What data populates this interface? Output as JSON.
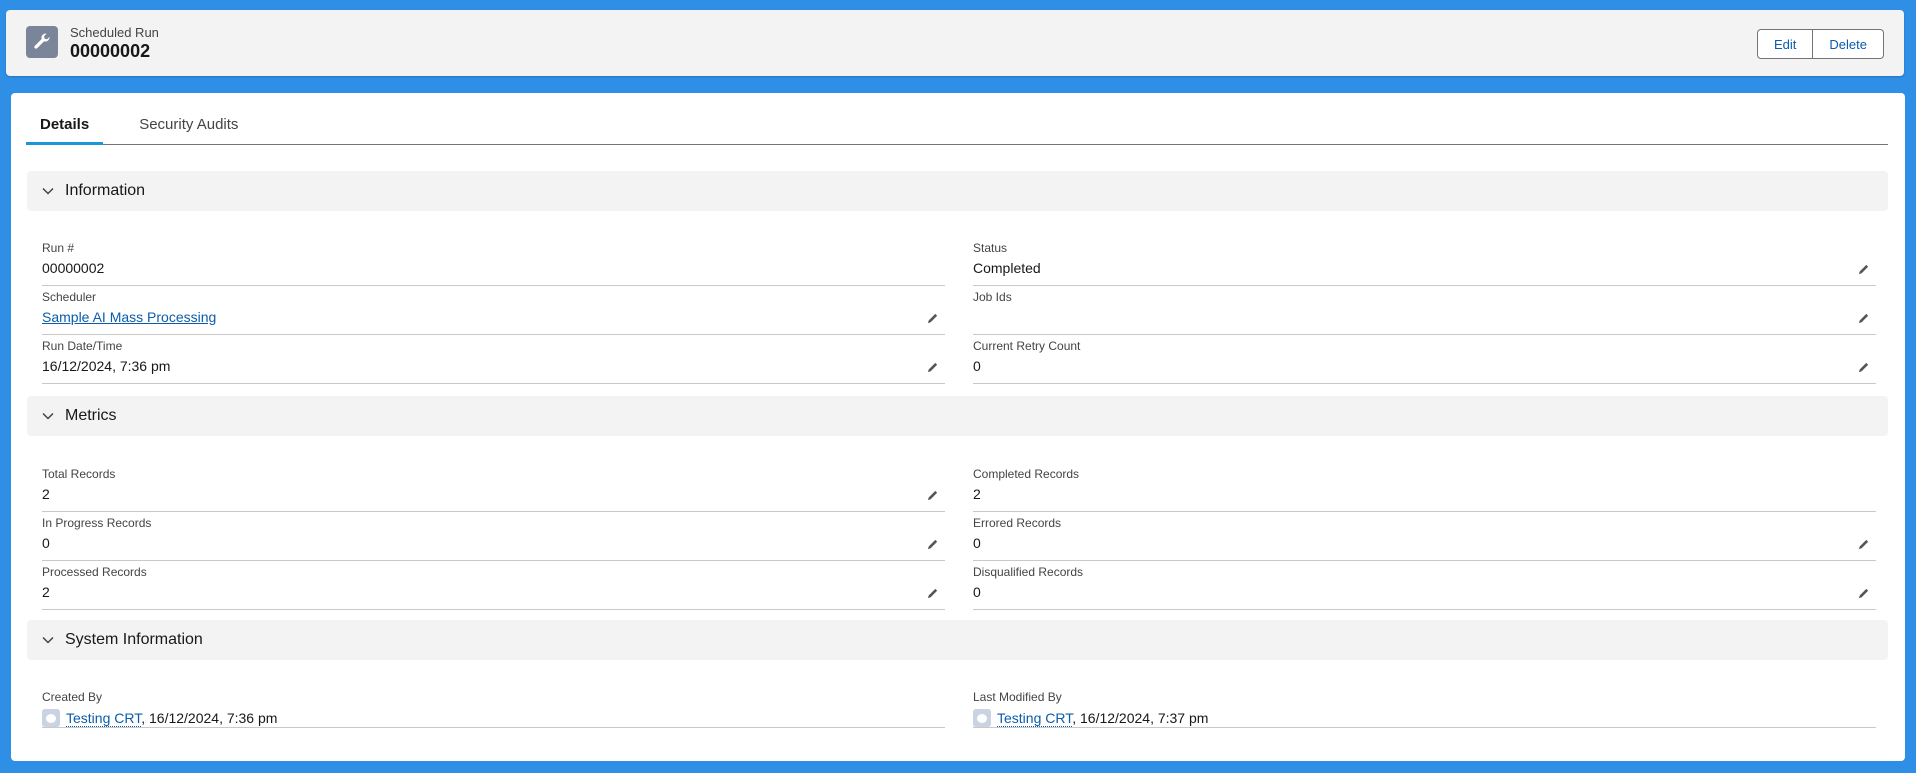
{
  "header": {
    "object_label": "Scheduled Run",
    "record_name": "00000002",
    "icon": "wrench-icon",
    "edit_label": "Edit",
    "delete_label": "Delete"
  },
  "tabs": [
    {
      "label": "Details",
      "active": true
    },
    {
      "label": "Security Audits",
      "active": false
    }
  ],
  "sections": {
    "information": {
      "title": "Information",
      "left": [
        {
          "label": "Run #",
          "value": "00000002"
        },
        {
          "label": "Scheduler",
          "value": "Sample AI Mass Processing"
        },
        {
          "label": "Run Date/Time",
          "value": "16/12/2024, 7:36 pm"
        }
      ],
      "right": [
        {
          "label": "Status",
          "value": "Completed"
        },
        {
          "label": "Job Ids",
          "value": ""
        },
        {
          "label": "Current Retry Count",
          "value": "0"
        }
      ]
    },
    "metrics": {
      "title": "Metrics",
      "left": [
        {
          "label": "Total Records",
          "value": "2"
        },
        {
          "label": "In Progress Records",
          "value": "0"
        },
        {
          "label": "Processed Records",
          "value": "2"
        }
      ],
      "right": [
        {
          "label": "Completed Records",
          "value": "2"
        },
        {
          "label": "Errored Records",
          "value": "0"
        },
        {
          "label": "Disqualified Records",
          "value": "0"
        }
      ]
    },
    "system": {
      "title": "System Information",
      "created": {
        "label": "Created By",
        "user": "Testing CRT",
        "date": ", 16/12/2024, 7:36 pm"
      },
      "modified": {
        "label": "Last Modified By",
        "user": "Testing CRT",
        "date": ", 16/12/2024, 7:37 pm"
      }
    }
  },
  "colors": {
    "accent": "#1b96d8",
    "link": "#0b5cab",
    "background": "#2f8fe6",
    "icon_bg": "#7a8599"
  }
}
